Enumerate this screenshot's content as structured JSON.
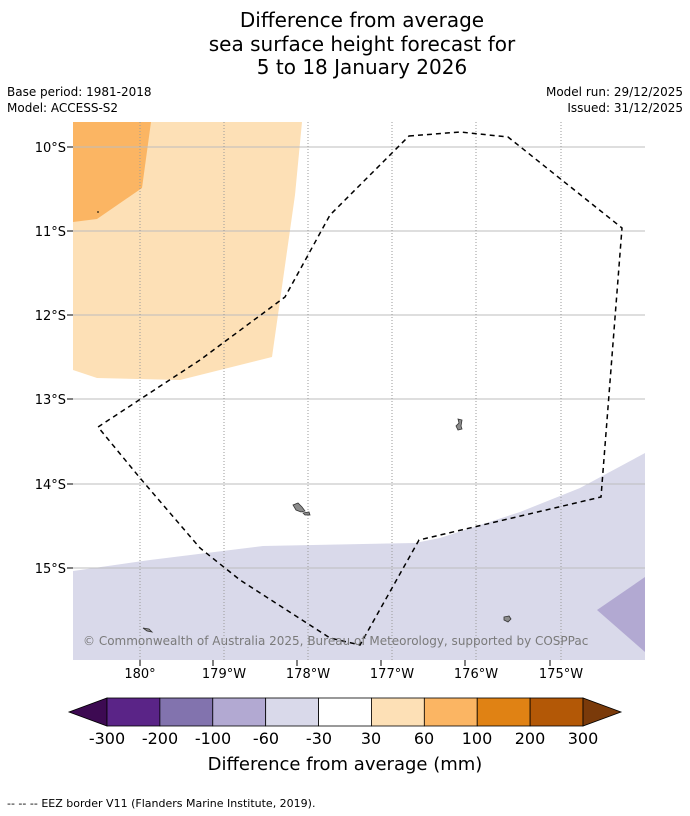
{
  "title": {
    "line1": "Difference from average",
    "line2": "sea surface height forecast for",
    "line3": "5 to 18 January 2026"
  },
  "meta": {
    "base_period": "Base period: 1981-2018",
    "model": "Model: ACCESS-S2",
    "model_run": "Model run: 29/12/2025",
    "issued": "Issued: 31/12/2025"
  },
  "map": {
    "lat_labels": [
      "10°S",
      "11°S",
      "12°S",
      "13°S",
      "14°S",
      "15°S"
    ],
    "lon_labels": [
      "180°",
      "179°W",
      "178°W",
      "177°W",
      "176°W",
      "175°W"
    ],
    "copyright": "© Commonwealth of Australia 2025, Bureau of Meteorology, supported by COSPPac",
    "colors": {
      "land": "#8c8c8c",
      "eez": "#000000",
      "gridline": "#b8b8b8"
    }
  },
  "colorbar": {
    "title": "Difference from average (mm)",
    "tick_labels": [
      "-300",
      "-200",
      "-100",
      "-60",
      "-30",
      "30",
      "60",
      "100",
      "200",
      "300"
    ],
    "under_color": "#3d0a52",
    "over_color": "#7a3a0a",
    "bins": [
      {
        "color": "#5a2487"
      },
      {
        "color": "#8273ae"
      },
      {
        "color": "#b2a9d2"
      },
      {
        "color": "#d9d9ea"
      },
      {
        "color": "#ffffff"
      },
      {
        "color": "#fde0b6"
      },
      {
        "color": "#fbb563"
      },
      {
        "color": "#e08214"
      },
      {
        "color": "#b35806"
      }
    ]
  },
  "footer": {
    "legend_symbol": "-- -- --",
    "legend_text": "EEZ border V11 (Flanders Marine Institute, 2019)."
  }
}
